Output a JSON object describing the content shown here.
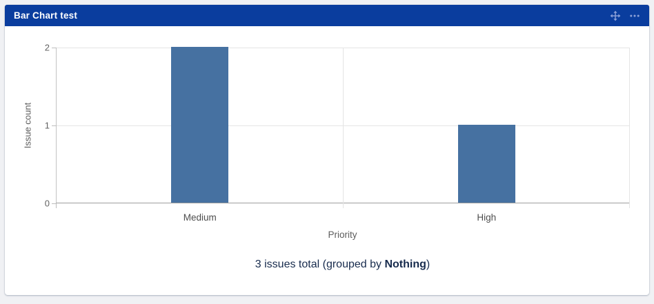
{
  "page": {
    "background": "#f0f1f4"
  },
  "panel": {
    "header": {
      "title": "Bar Chart test",
      "background": "#0a3d9e",
      "icon_color": "#8fa3d9",
      "icons": [
        "move-icon",
        "more-options-icon"
      ]
    },
    "summary": {
      "prefix": "3 issues total (grouped by ",
      "bold": "Nothing",
      "suffix": ")",
      "full_text": "3 issues total (grouped by Nothing)",
      "text_color": "#172b4d"
    }
  },
  "chart_data": {
    "type": "bar",
    "title": "",
    "categories": [
      "Medium",
      "High"
    ],
    "values": [
      2,
      1
    ],
    "total_issues": 3,
    "grouped_by": "Nothing",
    "xlabel": "Priority",
    "ylabel": "Issue count",
    "ylim": [
      0,
      2
    ],
    "yticks": [
      0,
      1,
      2
    ],
    "bar_color": "#4671a1",
    "grid": true,
    "legend": "none"
  }
}
